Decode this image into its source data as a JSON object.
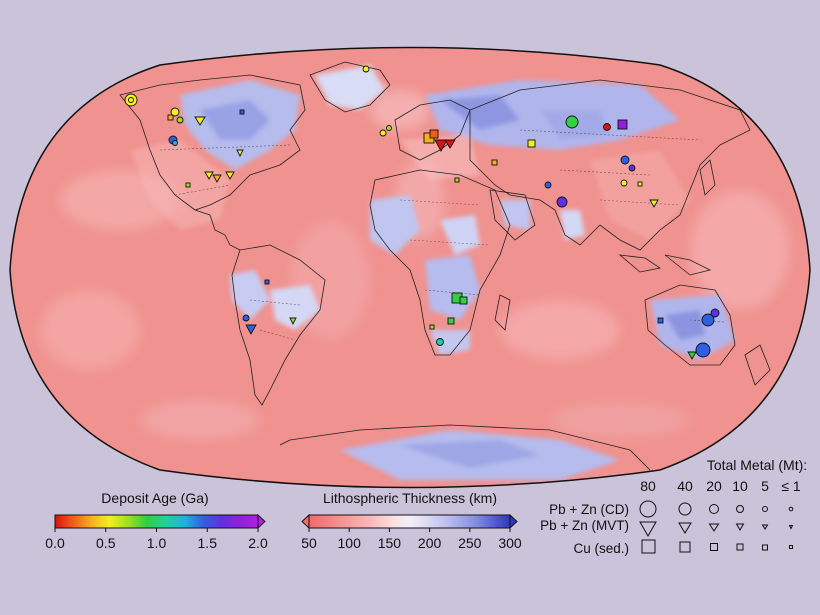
{
  "map": {
    "projection": "Robinson",
    "background_color": "#cbc3da",
    "land_outline_color": "#222222",
    "ocean_base_color": "#f0928f"
  },
  "legends": {
    "age": {
      "title": "Deposit Age (Ga)",
      "ticks": [
        "0.0",
        "0.5",
        "1.0",
        "1.5",
        "2.0"
      ],
      "range": [
        0.0,
        2.0
      ],
      "colors": [
        "#e01010",
        "#f06018",
        "#f8b020",
        "#f0f020",
        "#a0e020",
        "#30d040",
        "#20d0a0",
        "#20b0e0",
        "#3060e0",
        "#6030e0",
        "#9020d8",
        "#b020e0"
      ]
    },
    "thickness": {
      "title": "Lithospheric Thickness (km)",
      "ticks": [
        "50",
        "100",
        "150",
        "200",
        "250",
        "300"
      ],
      "range": [
        50,
        300
      ],
      "colors": [
        "#f06a6a",
        "#f59090",
        "#f8b8b8",
        "#fbe0e0",
        "#f4f0f8",
        "#d8d8f4",
        "#b0b4ec",
        "#8088e0",
        "#5058d0",
        "#3038b8"
      ]
    },
    "metal": {
      "title": "Total Metal (Mt):",
      "columns": [
        "80",
        "40",
        "20",
        "10",
        "5",
        "≤ 1"
      ],
      "rows": [
        {
          "label": "Pb + Zn (CD)",
          "symbol": "circle"
        },
        {
          "label": "Pb + Zn (MVT)",
          "symbol": "triangle"
        },
        {
          "label": "Cu (sed.)",
          "symbol": "square"
        }
      ]
    }
  }
}
